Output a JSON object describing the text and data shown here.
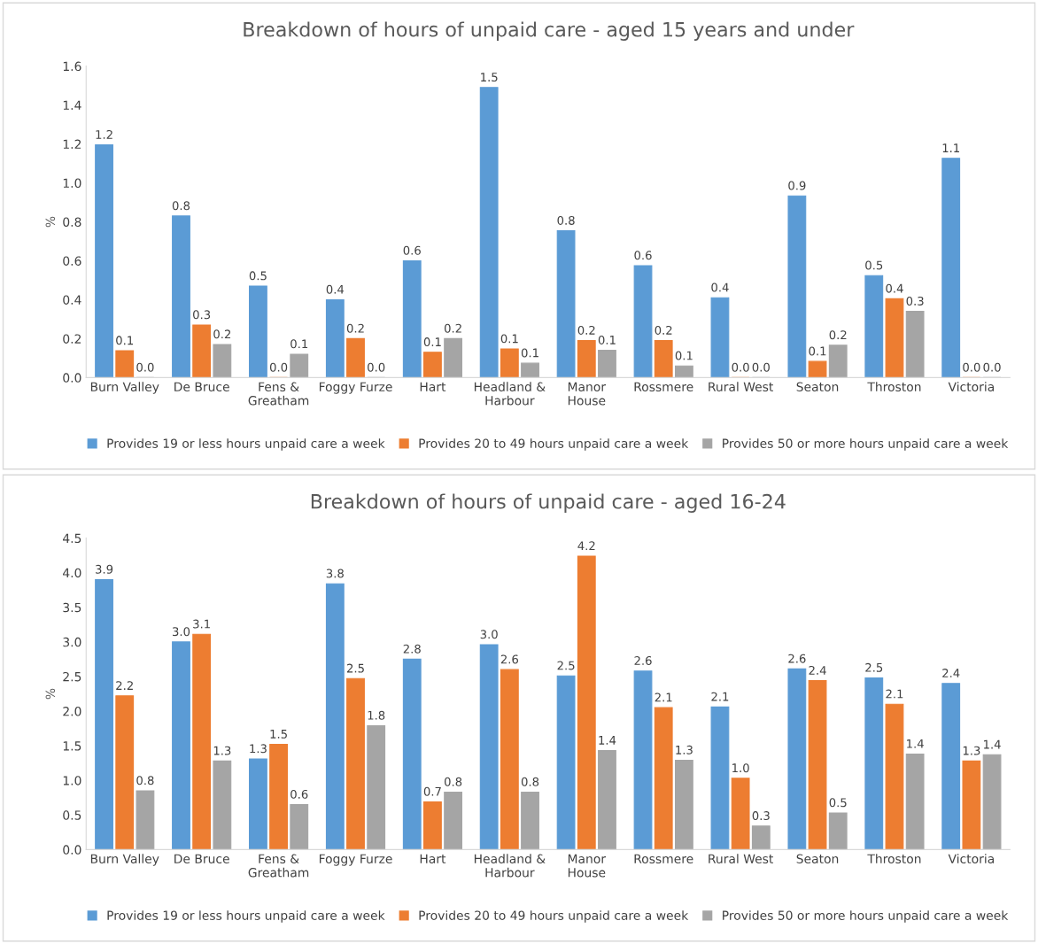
{
  "chart_data": [
    {
      "type": "bar",
      "title": "Breakdown of hours of unpaid care - aged 15 years and under",
      "ylabel": "%",
      "categories": [
        "Burn Valley",
        "De Bruce",
        "Fens &\nGreatham",
        "Foggy Furze",
        "Hart",
        "Headland &\nHarbour",
        "Manor\nHouse",
        "Rossmere",
        "Rural West",
        "Seaton",
        "Throston",
        "Victoria"
      ],
      "ylim": [
        0,
        1.6
      ],
      "yticks": [
        {
          "value": 0,
          "label": "0.0"
        },
        {
          "value": 0.2,
          "label": "0.2"
        },
        {
          "value": 0.4,
          "label": "0.4"
        },
        {
          "value": 0.6,
          "label": "0.6"
        },
        {
          "value": 0.8,
          "label": "0.8"
        },
        {
          "value": 1.0,
          "label": "1.0"
        },
        {
          "value": 1.2,
          "label": "1.2"
        },
        {
          "value": 1.4,
          "label": "1.4"
        },
        {
          "value": 1.6,
          "label": "1.6"
        }
      ],
      "grid": false,
      "legend": "bottom",
      "series": [
        {
          "name": "Provides 19 or less hours unpaid care a week",
          "color": "#5b9bd5",
          "values": [
            1.195,
            0.83,
            0.47,
            0.4,
            0.6,
            1.49,
            0.754,
            0.575,
            0.41,
            0.933,
            0.524,
            1.126
          ],
          "value_labels": [
            "1.2",
            "0.8",
            "0.5",
            "0.4",
            "0.6",
            "1.5",
            "0.8",
            "0.6",
            "0.4",
            "0.9",
            "0.5",
            "1.1"
          ]
        },
        {
          "name": "Provides 20 to 49 hours unpaid care a week",
          "color": "#ed7d31",
          "values": [
            0.138,
            0.27,
            0,
            0.2,
            0.13,
            0.147,
            0.19,
            0.19,
            0,
            0.083,
            0.405,
            0
          ],
          "value_labels": [
            "0.1",
            "0.3",
            "0.0",
            "0.2",
            "0.1",
            "0.1",
            "0.2",
            "0.2",
            "0.0",
            "0.1",
            "0.4",
            "0.0"
          ]
        },
        {
          "name": "Provides 50 or more hours unpaid care a week",
          "color": "#a5a5a5",
          "values": [
            0,
            0.17,
            0.12,
            0,
            0.2,
            0.074,
            0.14,
            0.06,
            0,
            0.166,
            0.34,
            0
          ],
          "value_labels": [
            "0.0",
            "0.2",
            "0.1",
            "0.0",
            "0.2",
            "0.1",
            "0.1",
            "0.1",
            "0.0",
            "0.2",
            "0.3",
            "0.0"
          ]
        }
      ]
    },
    {
      "type": "bar",
      "title": "Breakdown of hours of unpaid care - aged 16-24",
      "ylabel": "%",
      "categories": [
        "Burn Valley",
        "De Bruce",
        "Fens &\nGreatham",
        "Foggy Furze",
        "Hart",
        "Headland &\nHarbour",
        "Manor\nHouse",
        "Rossmere",
        "Rural West",
        "Seaton",
        "Throston",
        "Victoria"
      ],
      "ylim": [
        0,
        4.5
      ],
      "yticks": [
        {
          "value": 0,
          "label": "0.0"
        },
        {
          "value": 0.5,
          "label": "0.5"
        },
        {
          "value": 1.0,
          "label": "1.0"
        },
        {
          "value": 1.5,
          "label": "1.5"
        },
        {
          "value": 2.0,
          "label": "2.0"
        },
        {
          "value": 2.5,
          "label": "2.5"
        },
        {
          "value": 3.0,
          "label": "3.0"
        },
        {
          "value": 3.5,
          "label": "3.5"
        },
        {
          "value": 4.0,
          "label": "4.0"
        },
        {
          "value": 4.5,
          "label": "4.5"
        }
      ],
      "grid": false,
      "legend": "bottom",
      "series": [
        {
          "name": "Provides 19 or less hours unpaid care a week",
          "color": "#5b9bd5",
          "values": [
            3.9,
            3.0,
            1.31,
            3.84,
            2.75,
            2.96,
            2.51,
            2.58,
            2.06,
            2.61,
            2.48,
            2.4
          ],
          "value_labels": [
            "3.9",
            "3.0",
            "1.3",
            "3.8",
            "2.8",
            "3.0",
            "2.5",
            "2.6",
            "2.1",
            "2.6",
            "2.5",
            "2.4"
          ]
        },
        {
          "name": "Provides 20 to 49 hours unpaid care a week",
          "color": "#ed7d31",
          "values": [
            2.22,
            3.11,
            1.52,
            2.47,
            0.69,
            2.6,
            4.24,
            2.05,
            1.03,
            2.44,
            2.1,
            1.28
          ],
          "value_labels": [
            "2.2",
            "3.1",
            "1.5",
            "2.5",
            "0.7",
            "2.6",
            "4.2",
            "2.1",
            "1.0",
            "2.4",
            "2.1",
            "1.3"
          ]
        },
        {
          "name": "Provides 50 or more hours unpaid care a week",
          "color": "#a5a5a5",
          "values": [
            0.85,
            1.28,
            0.65,
            1.79,
            0.83,
            0.83,
            1.43,
            1.29,
            0.34,
            0.53,
            1.38,
            1.37
          ],
          "value_labels": [
            "0.8",
            "1.3",
            "0.6",
            "1.8",
            "0.8",
            "0.8",
            "1.4",
            "1.3",
            "0.3",
            "0.5",
            "1.4",
            "1.4"
          ]
        }
      ]
    }
  ]
}
